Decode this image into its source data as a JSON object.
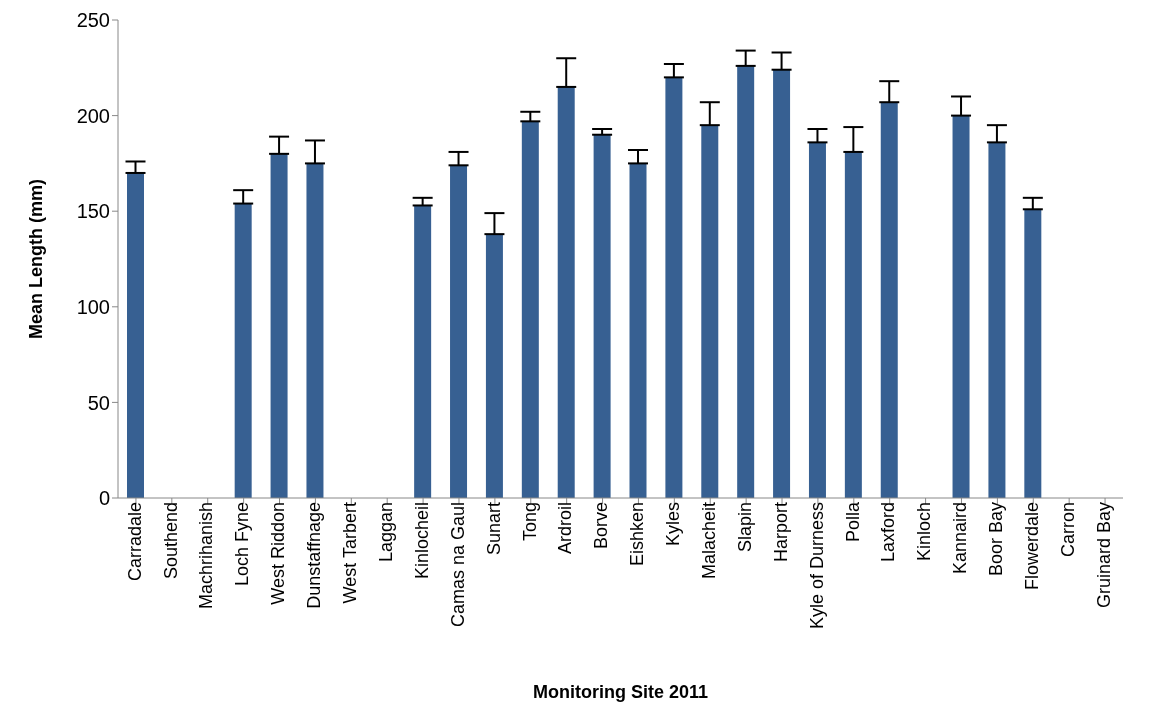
{
  "chart_data": {
    "type": "bar",
    "xlabel": "Monitoring Site 2011",
    "ylabel": "Mean Length (mm)",
    "categories": [
      "Carradale",
      "Southend",
      "Machrihanish",
      "Loch Fyne",
      "West Riddon",
      "Dunstaffnage",
      "West Tarbert",
      "Laggan",
      "Kinlocheil",
      "Camas na Gaul",
      "Sunart",
      "Tong",
      "Ardroil",
      "Borve",
      "Eishken",
      "Kyles",
      "Malacheit",
      "Slapin",
      "Harport",
      "Kyle of Durness",
      "Polla",
      "Laxford",
      "Kinloch",
      "Kannaird",
      "Boor Bay",
      "Flowerdale",
      "Carron",
      "Gruinard Bay"
    ],
    "values": [
      170,
      null,
      null,
      154,
      180,
      175,
      null,
      null,
      153,
      174,
      138,
      197,
      215,
      190,
      175,
      220,
      195,
      226,
      224,
      186,
      181,
      207,
      null,
      200,
      186,
      151,
      null,
      null
    ],
    "errors": [
      [
        170,
        176
      ],
      null,
      null,
      [
        154,
        161
      ],
      [
        180,
        189
      ],
      [
        175,
        187
      ],
      null,
      null,
      [
        153,
        157
      ],
      [
        174,
        181
      ],
      [
        138,
        149
      ],
      [
        197,
        202
      ],
      [
        215,
        230
      ],
      [
        190,
        193
      ],
      [
        175,
        182
      ],
      [
        220,
        227
      ],
      [
        195,
        207
      ],
      [
        226,
        234
      ],
      [
        224,
        233
      ],
      [
        186,
        193
      ],
      [
        181,
        194
      ],
      [
        207,
        218
      ],
      null,
      [
        200,
        210
      ],
      [
        186,
        195
      ],
      [
        151,
        157
      ],
      null,
      null
    ],
    "color": "#376092",
    "ylim": [
      0,
      250
    ],
    "yticks": [
      0,
      50,
      100,
      150,
      200,
      250
    ],
    "grid": false
  }
}
